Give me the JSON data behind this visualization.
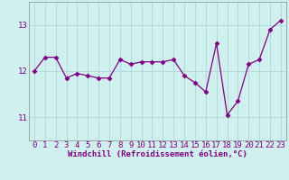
{
  "x": [
    0,
    1,
    2,
    3,
    4,
    5,
    6,
    7,
    8,
    9,
    10,
    11,
    12,
    13,
    14,
    15,
    16,
    17,
    18,
    19,
    20,
    21,
    22,
    23
  ],
  "y": [
    12.0,
    12.3,
    12.3,
    11.85,
    11.95,
    11.9,
    11.85,
    11.85,
    12.25,
    12.15,
    12.2,
    12.2,
    12.2,
    12.25,
    11.9,
    11.75,
    11.55,
    12.6,
    11.05,
    11.35,
    12.15,
    12.25,
    12.9,
    13.1
  ],
  "line_color": "#800080",
  "marker": "D",
  "marker_size": 2.5,
  "bg_color": "#d0efef",
  "grid_color": "#aad8d8",
  "xlabel": "Windchill (Refroidissement éolien,°C)",
  "ylim": [
    10.5,
    13.5
  ],
  "xlim": [
    -0.5,
    23.5
  ],
  "yticks": [
    11,
    12,
    13
  ],
  "xticks": [
    0,
    1,
    2,
    3,
    4,
    5,
    6,
    7,
    8,
    9,
    10,
    11,
    12,
    13,
    14,
    15,
    16,
    17,
    18,
    19,
    20,
    21,
    22,
    23
  ],
  "axis_fontsize": 6.5,
  "tick_fontsize": 6.5,
  "lw": 0.9
}
